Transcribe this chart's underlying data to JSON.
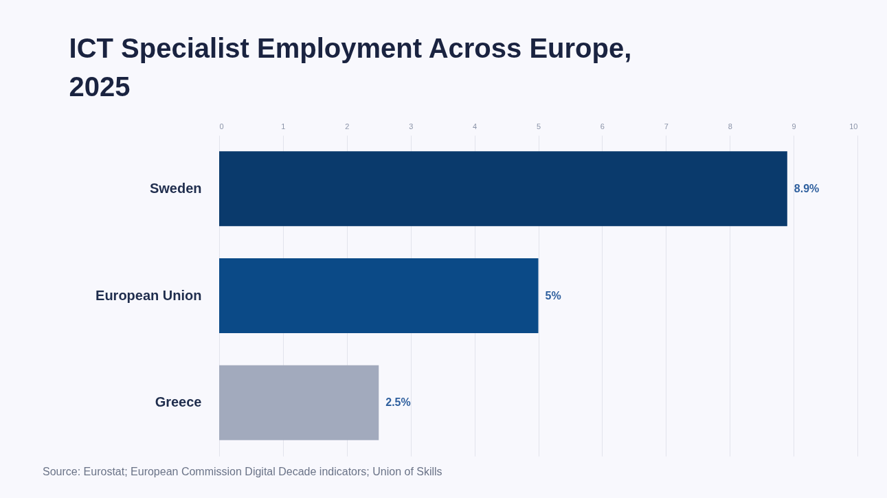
{
  "chart_data": {
    "type": "bar",
    "orientation": "horizontal",
    "title": "ICT Specialist Employment Across Europe, 2025",
    "categories": [
      "Sweden",
      "European Union",
      "Greece"
    ],
    "values": [
      8.9,
      5,
      2.5
    ],
    "colors": [
      "#0a3a6c",
      "#0b4a87",
      "#a2aabd"
    ],
    "value_labels": [
      "8.9%",
      "5%",
      "2.5%"
    ],
    "xlim": [
      0,
      10
    ],
    "xticks": [
      0,
      1,
      2,
      3,
      4,
      5,
      6,
      7,
      8,
      9,
      10
    ],
    "grid": "x",
    "annotations": [
      "Source: Eurostat; European Commission Digital Decade indicators; Union of Skills"
    ]
  }
}
